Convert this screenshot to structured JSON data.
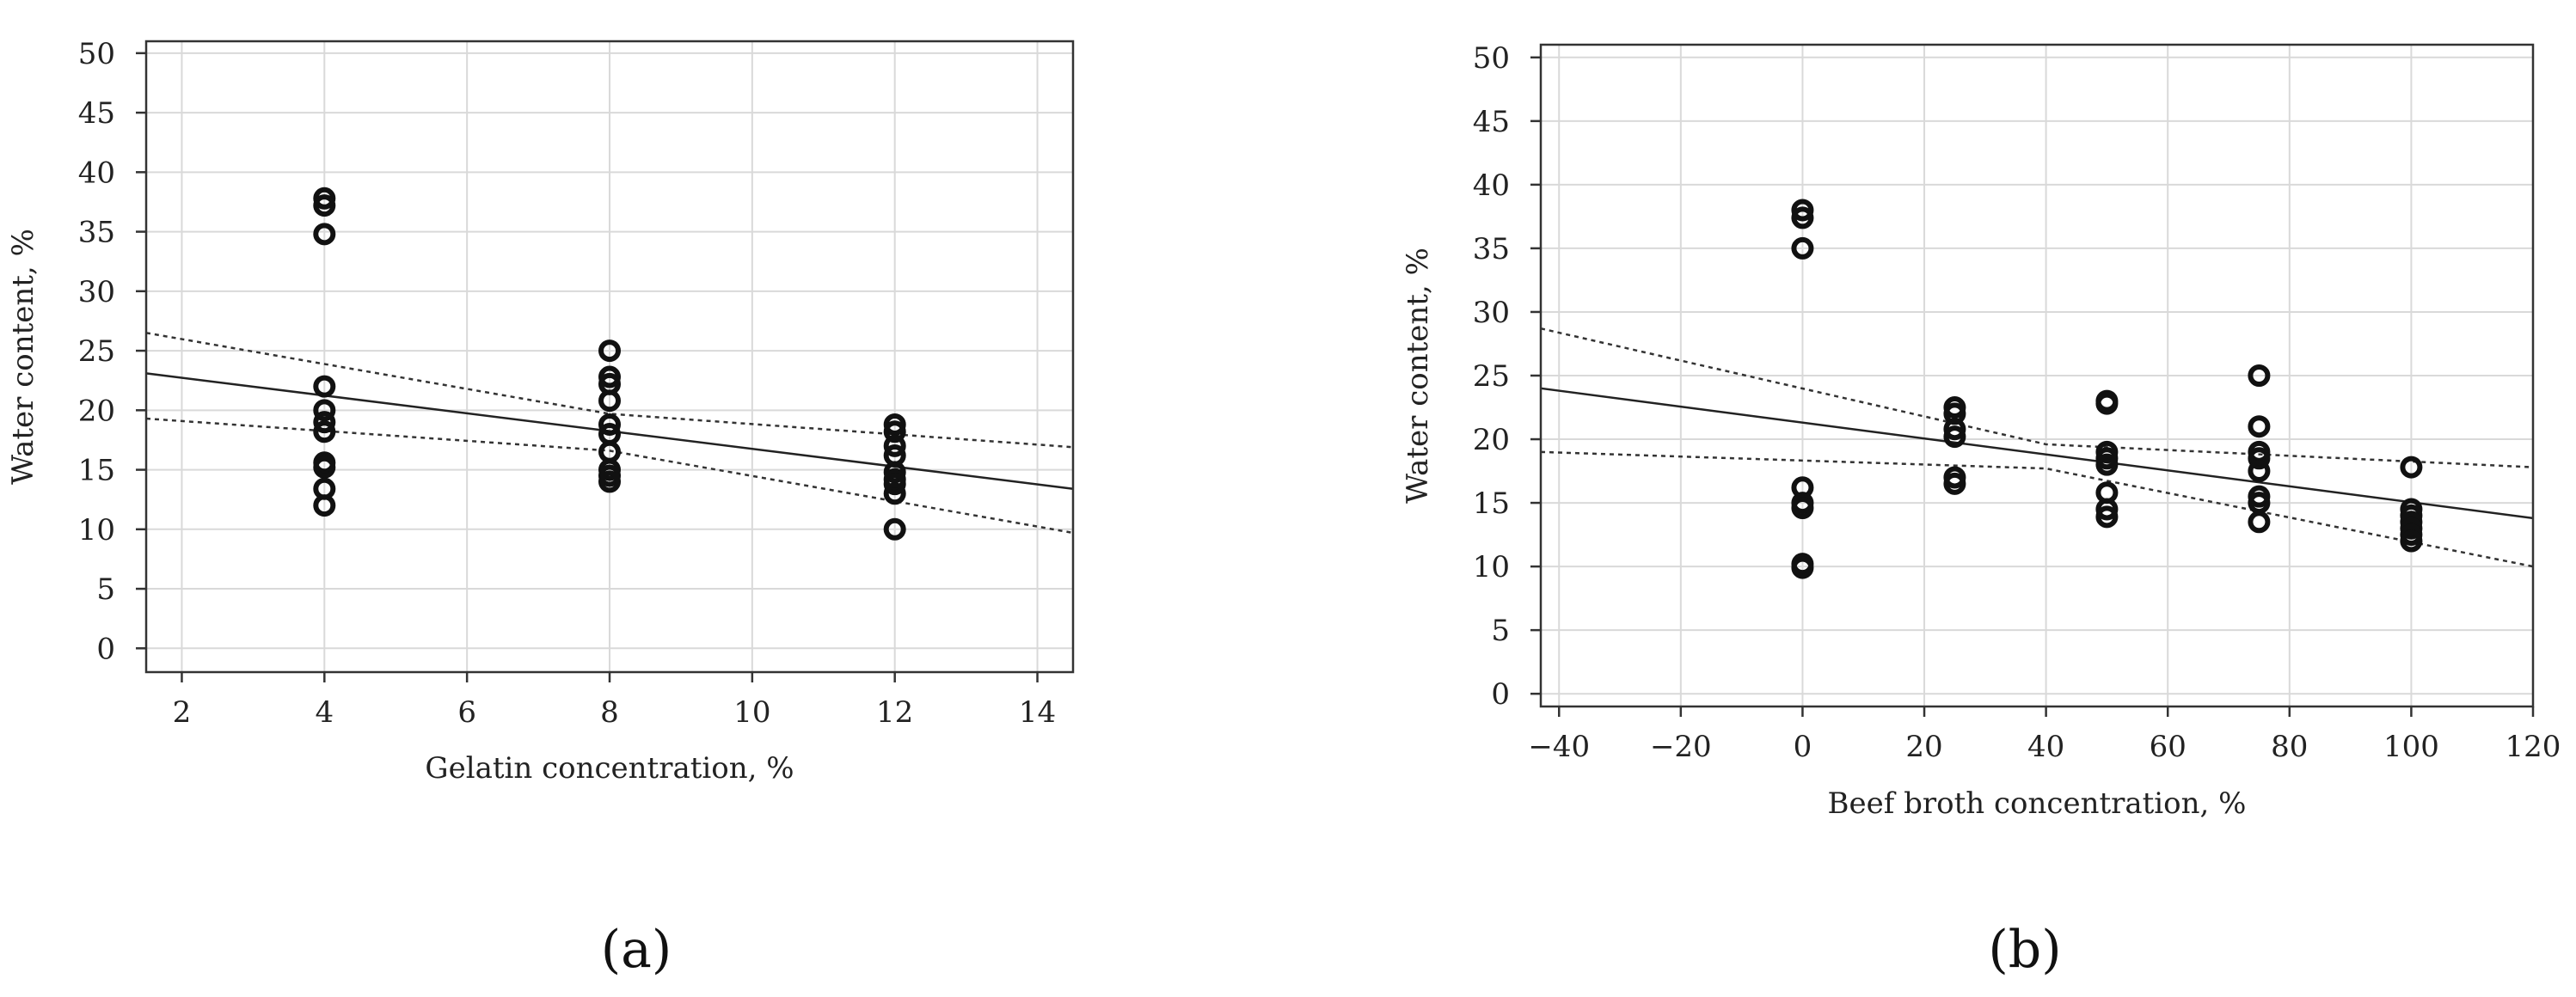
{
  "chart_data": [
    {
      "type": "scatter",
      "panel_label": "(a)",
      "xlabel": "Gelatin concentration, %",
      "ylabel": "Water content, %",
      "xlim": [
        1.5,
        14.5
      ],
      "ylim": [
        -2,
        51
      ],
      "xticks": [
        2,
        4,
        6,
        8,
        10,
        12,
        14
      ],
      "yticks": [
        0,
        5,
        10,
        15,
        20,
        25,
        30,
        35,
        40,
        45,
        50
      ],
      "grid": true,
      "points": [
        {
          "x": 4,
          "y": 37.8
        },
        {
          "x": 4,
          "y": 37.2
        },
        {
          "x": 4,
          "y": 34.8
        },
        {
          "x": 4,
          "y": 22
        },
        {
          "x": 4,
          "y": 20
        },
        {
          "x": 4,
          "y": 19
        },
        {
          "x": 4,
          "y": 18.2
        },
        {
          "x": 4,
          "y": 15.6
        },
        {
          "x": 4,
          "y": 15.2
        },
        {
          "x": 4,
          "y": 13.4
        },
        {
          "x": 4,
          "y": 12
        },
        {
          "x": 8,
          "y": 25
        },
        {
          "x": 8,
          "y": 22.8
        },
        {
          "x": 8,
          "y": 22.2
        },
        {
          "x": 8,
          "y": 20.8
        },
        {
          "x": 8,
          "y": 18.8
        },
        {
          "x": 8,
          "y": 18
        },
        {
          "x": 8,
          "y": 16.5
        },
        {
          "x": 8,
          "y": 15
        },
        {
          "x": 8,
          "y": 14.5
        },
        {
          "x": 8,
          "y": 14
        },
        {
          "x": 12,
          "y": 18.8
        },
        {
          "x": 12,
          "y": 18.2
        },
        {
          "x": 12,
          "y": 17
        },
        {
          "x": 12,
          "y": 16.2
        },
        {
          "x": 12,
          "y": 14.8
        },
        {
          "x": 12,
          "y": 14.2
        },
        {
          "x": 12,
          "y": 13.8
        },
        {
          "x": 12,
          "y": 13
        },
        {
          "x": 12,
          "y": 10
        }
      ],
      "fit_line": [
        [
          1.5,
          23.1
        ],
        [
          14.5,
          13.4
        ]
      ],
      "ci_upper": [
        [
          1.5,
          26.5
        ],
        [
          8,
          19.7
        ],
        [
          14.5,
          16.9
        ]
      ],
      "ci_lower": [
        [
          1.5,
          19.3
        ],
        [
          8,
          16.6
        ],
        [
          14.5,
          9.7
        ]
      ]
    },
    {
      "type": "scatter",
      "panel_label": "(b)",
      "xlabel": "Beef broth concentration, %",
      "ylabel": "Water content, %",
      "xlim": [
        -43,
        120
      ],
      "ylim": [
        -1,
        51
      ],
      "xticks": [
        -40,
        -20,
        0,
        20,
        40,
        60,
        80,
        100,
        120
      ],
      "xtick_labels": [
        "−40",
        "−20",
        "0",
        "20",
        "40",
        "60",
        "80",
        "100",
        "120"
      ],
      "yticks": [
        0,
        5,
        10,
        15,
        20,
        25,
        30,
        35,
        40,
        45,
        50
      ],
      "grid": true,
      "points": [
        {
          "x": 0,
          "y": 38
        },
        {
          "x": 0,
          "y": 37.4
        },
        {
          "x": 0,
          "y": 35
        },
        {
          "x": 0,
          "y": 16.2
        },
        {
          "x": 0,
          "y": 15
        },
        {
          "x": 0,
          "y": 14.6
        },
        {
          "x": 0,
          "y": 10.2
        },
        {
          "x": 0,
          "y": 9.9
        },
        {
          "x": 25,
          "y": 22.5
        },
        {
          "x": 25,
          "y": 22
        },
        {
          "x": 25,
          "y": 20.8
        },
        {
          "x": 25,
          "y": 20.2
        },
        {
          "x": 25,
          "y": 17
        },
        {
          "x": 25,
          "y": 16.5
        },
        {
          "x": 50,
          "y": 23
        },
        {
          "x": 50,
          "y": 22.8
        },
        {
          "x": 50,
          "y": 19
        },
        {
          "x": 50,
          "y": 18.5
        },
        {
          "x": 50,
          "y": 18
        },
        {
          "x": 50,
          "y": 15.8
        },
        {
          "x": 50,
          "y": 14.5
        },
        {
          "x": 50,
          "y": 13.9
        },
        {
          "x": 75,
          "y": 25
        },
        {
          "x": 75,
          "y": 21
        },
        {
          "x": 75,
          "y": 19
        },
        {
          "x": 75,
          "y": 18.5
        },
        {
          "x": 75,
          "y": 17.5
        },
        {
          "x": 75,
          "y": 15.5
        },
        {
          "x": 75,
          "y": 15
        },
        {
          "x": 75,
          "y": 13.5
        },
        {
          "x": 100,
          "y": 17.8
        },
        {
          "x": 100,
          "y": 14.5
        },
        {
          "x": 100,
          "y": 14
        },
        {
          "x": 100,
          "y": 13.5
        },
        {
          "x": 100,
          "y": 13
        },
        {
          "x": 100,
          "y": 12.5
        },
        {
          "x": 100,
          "y": 12
        }
      ],
      "fit_line": [
        [
          -43,
          24
        ],
        [
          120,
          13.8
        ]
      ],
      "ci_upper": [
        [
          -43,
          28.7
        ],
        [
          40,
          19.6
        ],
        [
          120,
          17.8
        ]
      ],
      "ci_lower": [
        [
          -43,
          19
        ],
        [
          40,
          17.7
        ],
        [
          120,
          10
        ]
      ]
    }
  ]
}
